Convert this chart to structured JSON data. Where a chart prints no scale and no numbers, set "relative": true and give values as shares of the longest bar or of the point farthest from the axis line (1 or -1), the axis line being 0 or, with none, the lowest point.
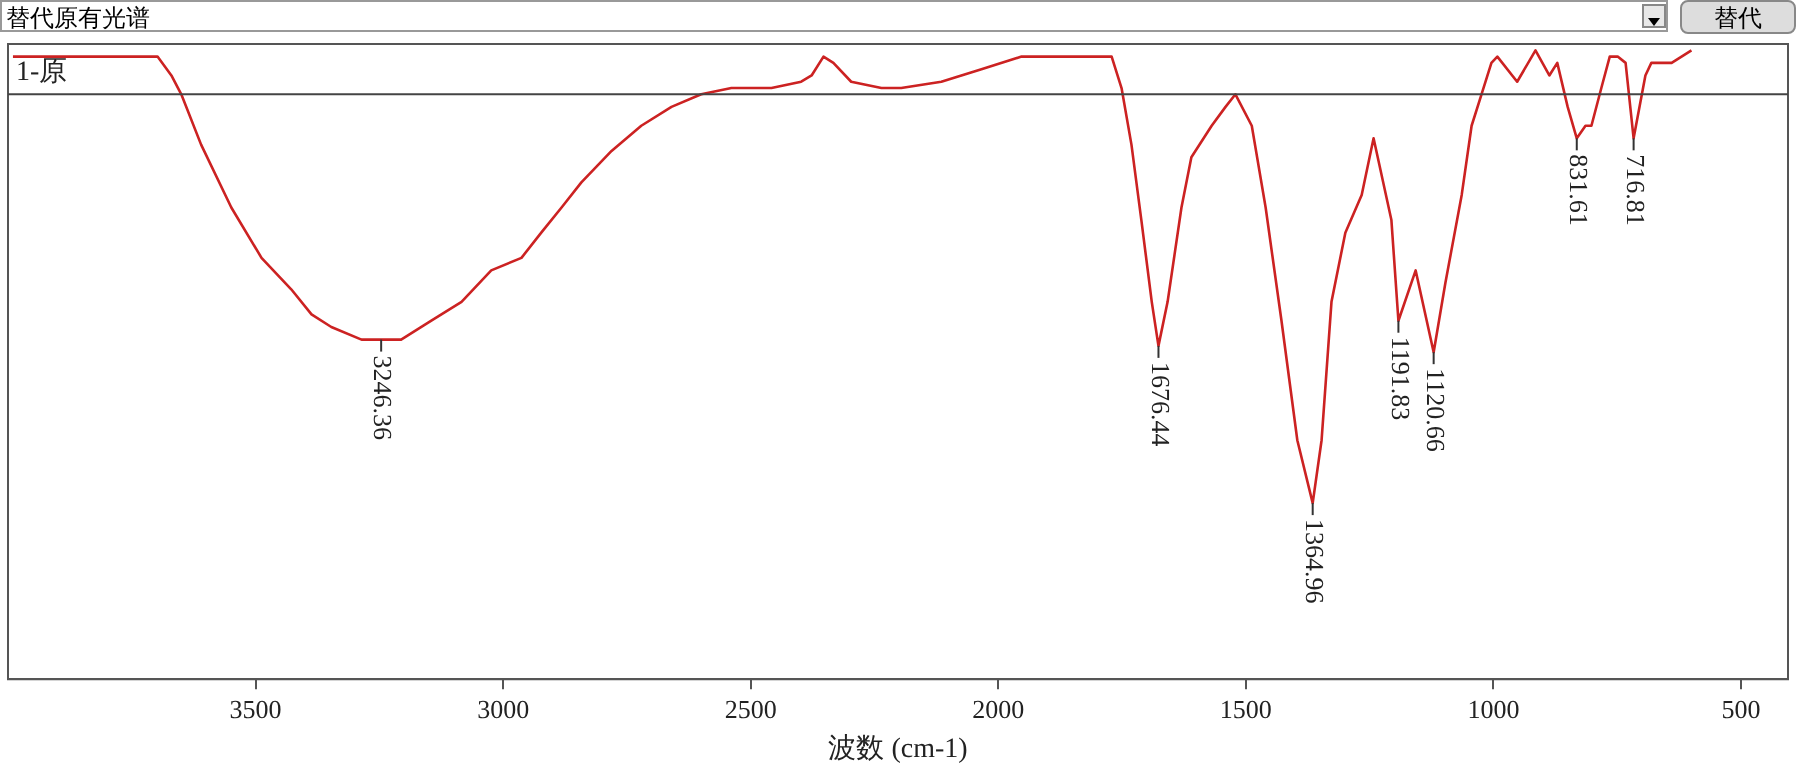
{
  "chart_data": {
    "type": "line",
    "relative": true,
    "xlabel": "波数 (cm-1)",
    "xlim": [
      4000,
      405
    ],
    "xticks": [
      3500,
      3000,
      2500,
      2000,
      1500,
      1000,
      500
    ],
    "grid": false,
    "legend": false,
    "marker": "none",
    "line_style": "solid",
    "series": [
      {
        "color": "#cc2222",
        "x": [
          3990,
          3852,
          3771,
          3731,
          3698,
          3670,
          3650,
          3610,
          3549,
          3488,
          3428,
          3387,
          3347,
          3286,
          3246.36,
          3206,
          3145,
          3084,
          3024,
          2963,
          2923,
          2882,
          2842,
          2781,
          2721,
          2660,
          2600,
          2539,
          2458,
          2398,
          2377,
          2353,
          2333,
          2297,
          2236,
          2196,
          2115,
          2034,
          1953,
          1872,
          1812,
          1771,
          1751,
          1731,
          1711,
          1690,
          1676.44,
          1658,
          1630,
          1610,
          1569,
          1541,
          1521,
          1488,
          1460,
          1428,
          1396,
          1364.96,
          1347,
          1327,
          1299,
          1266,
          1242,
          1206,
          1191.83,
          1157,
          1120.66,
          1097,
          1064,
          1044,
          1024,
          1004,
          992,
          952,
          915,
          887,
          871,
          850,
          831.61,
          814,
          802,
          782,
          765,
          749,
          733,
          716.81,
          693,
          681,
          640,
          600
        ],
        "values": [
          0.99,
          0.99,
          0.99,
          0.99,
          0.99,
          0.96,
          0.93,
          0.85,
          0.75,
          0.67,
          0.62,
          0.58,
          0.56,
          0.54,
          0.54,
          0.54,
          0.57,
          0.6,
          0.65,
          0.67,
          0.71,
          0.75,
          0.79,
          0.84,
          0.88,
          0.91,
          0.93,
          0.94,
          0.94,
          0.95,
          0.96,
          0.99,
          0.98,
          0.95,
          0.94,
          0.94,
          0.95,
          0.97,
          0.99,
          0.99,
          0.99,
          0.99,
          0.94,
          0.85,
          0.73,
          0.6,
          0.53,
          0.6,
          0.75,
          0.83,
          0.88,
          0.91,
          0.93,
          0.88,
          0.75,
          0.57,
          0.38,
          0.28,
          0.38,
          0.6,
          0.71,
          0.77,
          0.86,
          0.73,
          0.57,
          0.65,
          0.52,
          0.63,
          0.77,
          0.88,
          0.93,
          0.98,
          0.99,
          0.95,
          1.0,
          0.96,
          0.98,
          0.91,
          0.86,
          0.88,
          0.88,
          0.94,
          0.99,
          0.99,
          0.98,
          0.86,
          0.96,
          0.98,
          0.98,
          1.0
        ]
      }
    ],
    "ref_lines": [
      {
        "axis": "y",
        "value": 0.93,
        "label": "1-原",
        "color": "#444444"
      }
    ],
    "annotations": [
      {
        "text": "3246.36",
        "x": 3246.36,
        "y": 0.54
      },
      {
        "text": "1676.44",
        "x": 1676.44,
        "y": 0.53
      },
      {
        "text": "1364.96",
        "x": 1364.96,
        "y": 0.28
      },
      {
        "text": "1191.83",
        "x": 1191.83,
        "y": 0.57
      },
      {
        "text": "1120.66",
        "x": 1120.66,
        "y": 0.52
      },
      {
        "text": "831.61",
        "x": 831.61,
        "y": 0.86
      },
      {
        "text": "716.81",
        "x": 716.81,
        "y": 0.86
      },
      "替代原有光谱",
      "替代"
    ]
  }
}
